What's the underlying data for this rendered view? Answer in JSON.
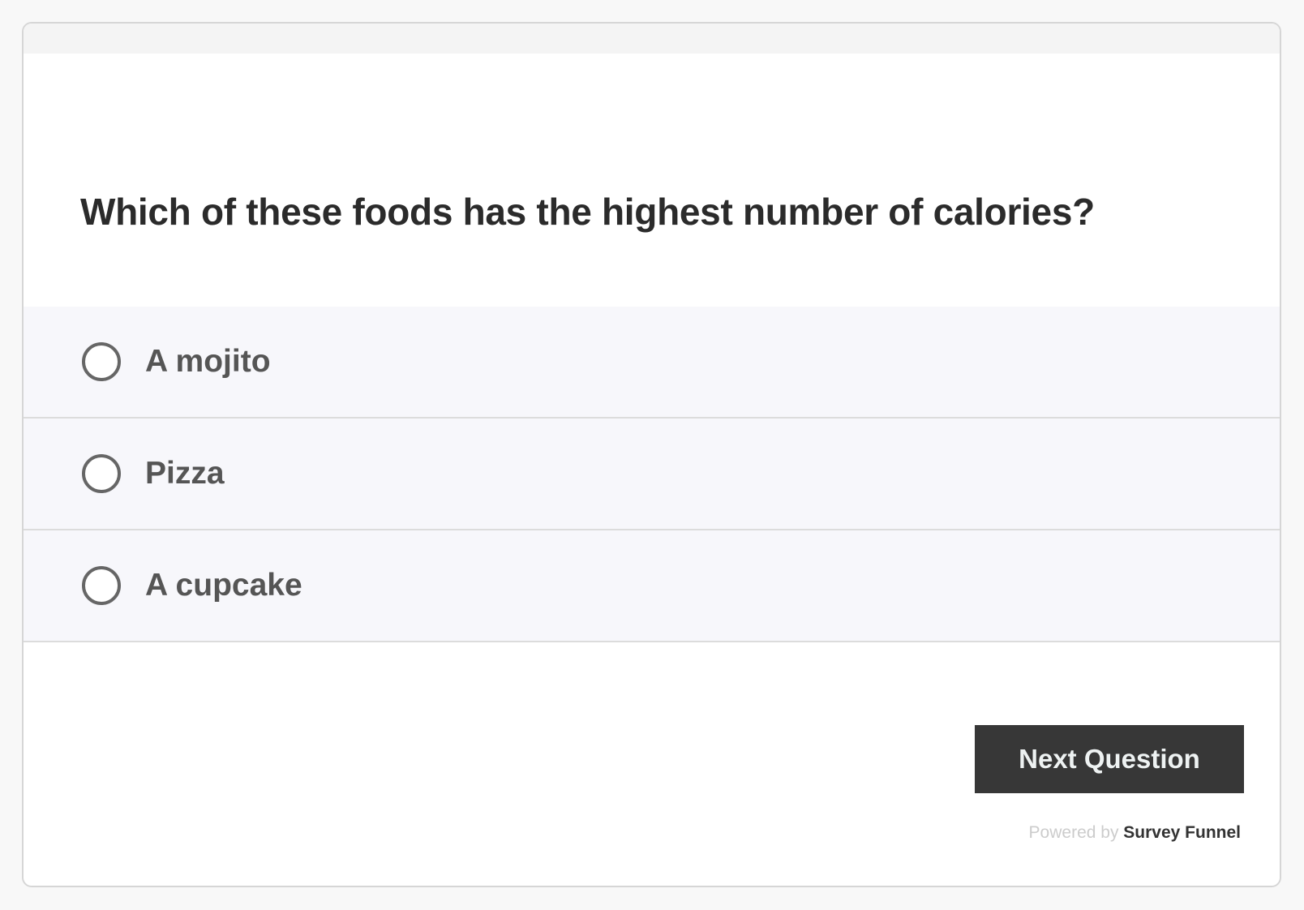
{
  "question": "Which of these foods has the highest number of calories?",
  "options": [
    {
      "label": "A mojito",
      "selected": false
    },
    {
      "label": "Pizza",
      "selected": false
    },
    {
      "label": "A cupcake",
      "selected": false
    }
  ],
  "next_button": "Next Question",
  "footer": {
    "powered_by": "Powered by",
    "brand": "Survey Funnel"
  }
}
